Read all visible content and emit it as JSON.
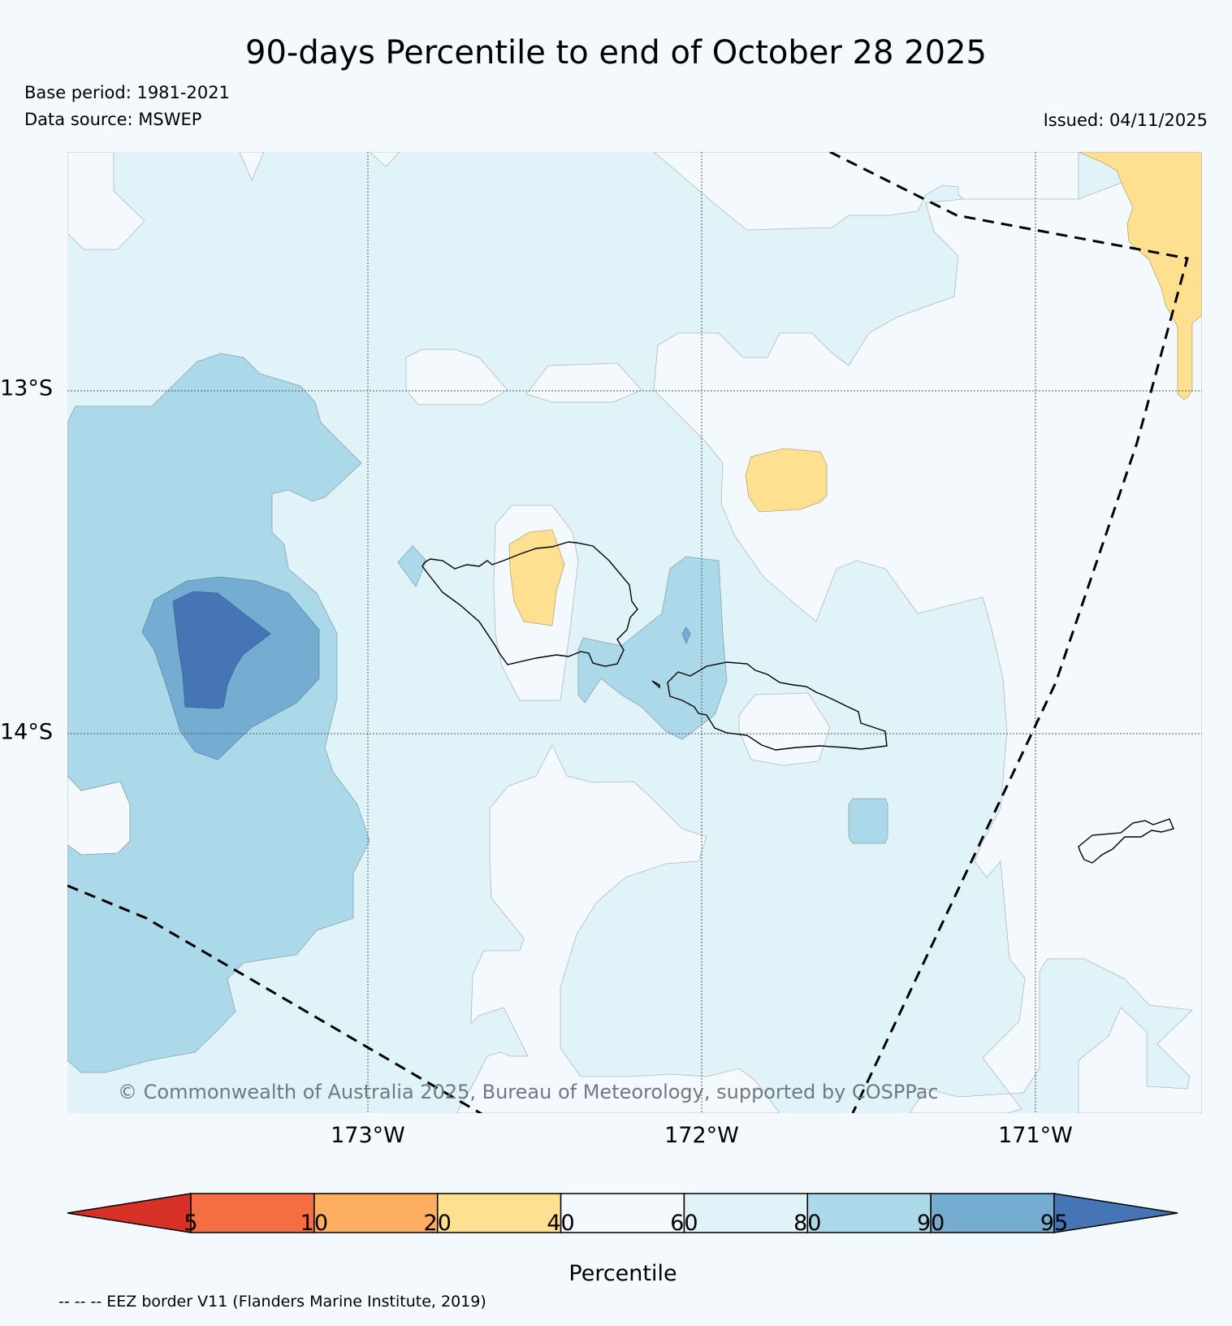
{
  "title": "90-days Percentile to end of October 28 2025",
  "base_period": "Base period: 1981-2021",
  "data_source": "Data source: MSWEP",
  "issued": "Issued: 04/11/2025",
  "copyright": "© Commonwealth of Australia 2025, Bureau of Meteorology, supported by COSPPac",
  "map": {
    "longitude_ticks": [
      "173°W",
      "172°W",
      "171°W"
    ],
    "latitude_ticks": [
      "13°S",
      "14°S"
    ],
    "gridlines": true,
    "eez_border": "dashed"
  },
  "colorbar": {
    "title": "Percentile",
    "ticks": [
      "5",
      "10",
      "20",
      "40",
      "60",
      "80",
      "90",
      "95"
    ],
    "colors": [
      "#d73027",
      "#f46d43",
      "#fdae61",
      "#fee090",
      "#f3f9fc",
      "#e0f3f8",
      "#abd9e9",
      "#74add1",
      "#4575b4"
    ]
  },
  "legend_note": "-- -- -- EEZ border V11 (Flanders Marine Institute, 2019)"
}
